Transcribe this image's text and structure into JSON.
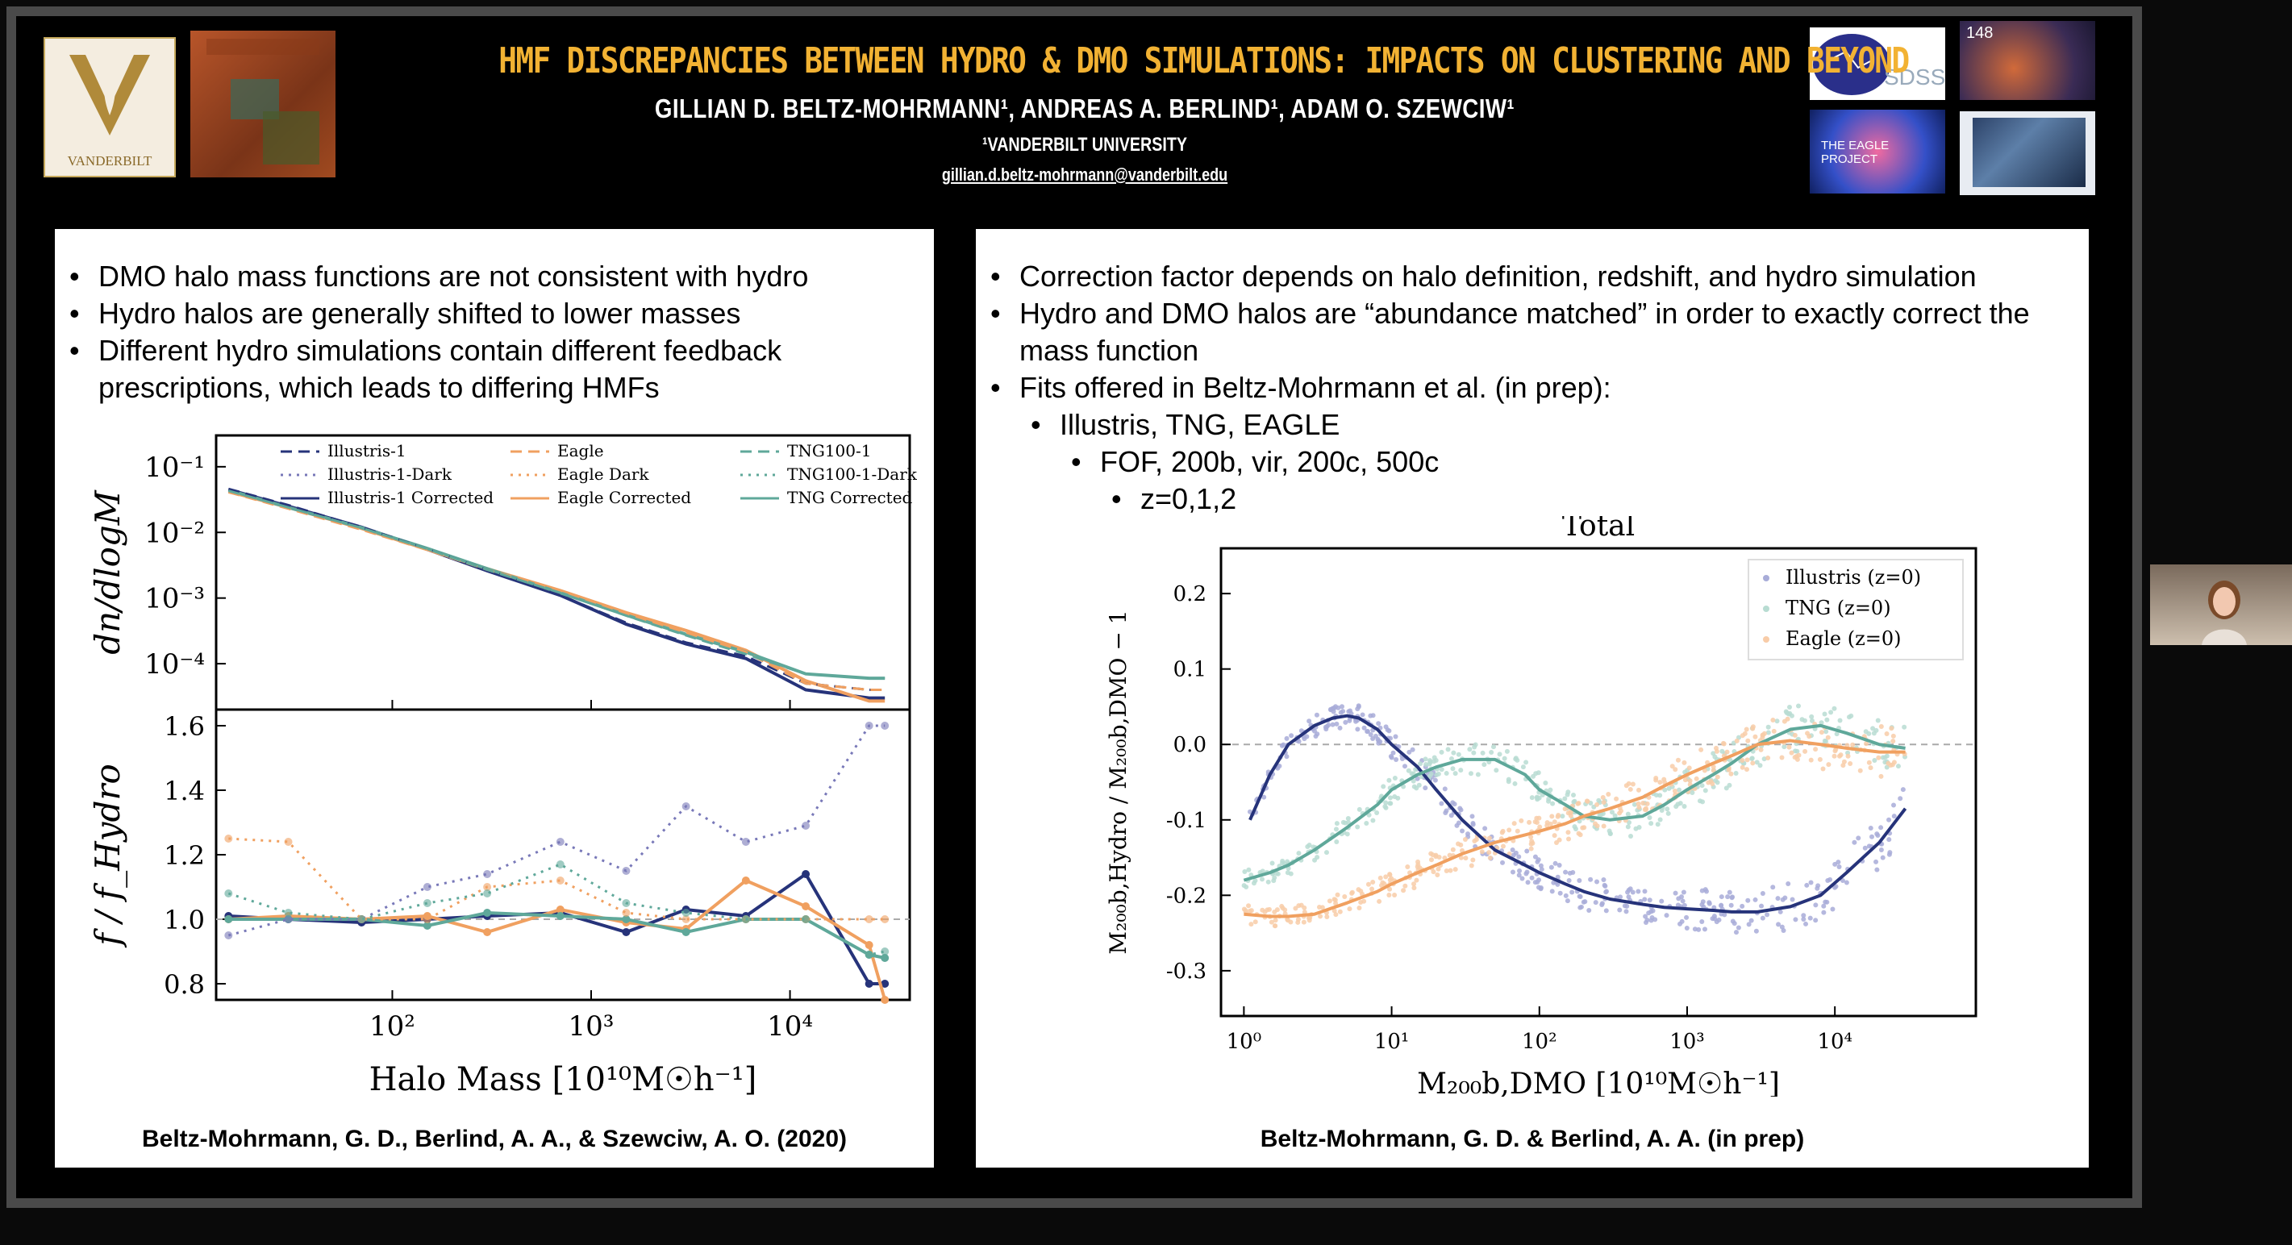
{
  "header": {
    "title": "HMF DISCREPANCIES BETWEEN HYDRO & DMO SIMULATIONS: IMPACTS ON CLUSTERING AND BEYOND",
    "authors": "GILLIAN D. BELTZ-MOHRMANN¹, ANDREAS A. BERLIND¹, ADAM O. SZEWCIW¹",
    "affiliation": "¹VANDERBILT UNIVERSITY",
    "email": "gillian.d.beltz-mohrmann@vanderbilt.edu",
    "logos": {
      "vanderbilt": "VANDERBILT",
      "sdss": "SDSS",
      "tng_number": "148",
      "eagle": "THE EAGLE PROJECT"
    }
  },
  "left_panel": {
    "bullets": [
      "DMO halo mass functions are not consistent with hydro",
      "Hydro halos are generally shifted to lower masses",
      "Different hydro simulations contain different feedback prescriptions, which leads to differing HMFs"
    ],
    "citation": "Beltz-Mohrmann, G. D., Berlind, A. A., & Szewciw, A. O. (2020)"
  },
  "right_panel": {
    "bullets": [
      {
        "text": "Correction factor depends on halo definition, redshift, and hydro simulation",
        "level": 0
      },
      {
        "text": "Hydro and DMO halos are “abundance matched” in order to exactly correct the mass function",
        "level": 0
      },
      {
        "text": "Fits offered in Beltz-Mohrmann et al. (in prep):",
        "level": 0
      },
      {
        "text": "Illustris, TNG, EAGLE",
        "level": 1
      },
      {
        "text": "FOF, 200b, vir, 200c, 500c",
        "level": 2
      },
      {
        "text": "z=0,1,2",
        "level": 3
      }
    ],
    "citation": "Beltz-Mohrmann, G. D. & Berlind, A. A. (in prep)"
  },
  "colors": {
    "title": "#f2b233",
    "illustris": "#26337a",
    "eagle": "#f0a060",
    "tng": "#5fa89a"
  },
  "chart_data": [
    {
      "type": "line",
      "title": "",
      "xlabel": "Halo Mass [10¹⁰M☉h⁻¹]",
      "ylabel": "dn/dlogM",
      "x_scale": "log",
      "y_scale": "log",
      "xlim": [
        13,
        40000
      ],
      "ylim": [
        2e-05,
        0.3
      ],
      "x_ticks": [
        {
          "v": 100,
          "label": "10²"
        },
        {
          "v": 1000,
          "label": "10³"
        },
        {
          "v": 10000,
          "label": "10⁴"
        }
      ],
      "y_ticks": [
        {
          "v": 0.1,
          "label": "10⁻¹"
        },
        {
          "v": 0.01,
          "label": "10⁻²"
        },
        {
          "v": 0.001,
          "label": "10⁻³"
        },
        {
          "v": 0.0001,
          "label": "10⁻⁴"
        }
      ],
      "legend": [
        "Illustris-1",
        "Eagle",
        "TNG100-1",
        "Illustris-1-Dark",
        "Eagle Dark",
        "TNG100-1-Dark",
        "Illustris-1 Corrected",
        "Eagle Corrected",
        "TNG Corrected"
      ],
      "legend_position": "top",
      "x": [
        15,
        30,
        70,
        150,
        300,
        700,
        1500,
        3000,
        6000,
        12000,
        25000,
        30000
      ],
      "series": [
        {
          "name": "Illustris-1 Corrected",
          "color": "#26337a",
          "dash": "solid",
          "values": [
            0.045,
            0.025,
            0.012,
            0.0055,
            0.0026,
            0.0011,
            0.0004,
            0.0002,
            0.00012,
            4e-05,
            3e-05,
            3e-05
          ]
        },
        {
          "name": "Eagle Corrected",
          "color": "#f0a060",
          "dash": "solid",
          "values": [
            0.042,
            0.024,
            0.0115,
            0.0055,
            0.0028,
            0.0013,
            0.0006,
            0.00032,
            0.00016,
            5.5e-05,
            2.7e-05,
            2.7e-05
          ]
        },
        {
          "name": "TNG Corrected",
          "color": "#5fa89a",
          "dash": "solid",
          "values": [
            0.044,
            0.024,
            0.0118,
            0.0057,
            0.0028,
            0.0012,
            0.00055,
            0.00028,
            0.00015,
            7e-05,
            6e-05,
            6e-05
          ]
        },
        {
          "name": "Illustris-1",
          "color": "#26337a",
          "dash": "dashed",
          "values": [
            0.046,
            0.026,
            0.012,
            0.0056,
            0.0027,
            0.0011,
            0.00042,
            0.00021,
            0.00013,
            5e-05,
            4e-05,
            4e-05
          ]
        },
        {
          "name": "Eagle",
          "color": "#f0a060",
          "dash": "dashed",
          "values": [
            0.041,
            0.023,
            0.011,
            0.0054,
            0.0027,
            0.0013,
            0.00058,
            0.0003,
            0.00015,
            5e-05,
            4e-05,
            4e-05
          ]
        },
        {
          "name": "TNG100-1",
          "color": "#5fa89a",
          "dash": "dashed",
          "values": [
            0.043,
            0.024,
            0.0117,
            0.0056,
            0.0027,
            0.0012,
            0.00054,
            0.00027,
            0.00014,
            7e-05,
            6e-05,
            6e-05
          ]
        }
      ]
    },
    {
      "type": "line",
      "title": "",
      "xlabel": "Halo Mass [10¹⁰M☉h⁻¹]",
      "ylabel": "f / f_Hydro",
      "x_scale": "log",
      "xlim": [
        13,
        40000
      ],
      "ylim": [
        0.75,
        1.65
      ],
      "y_ticks": [
        0.8,
        1.0,
        1.2,
        1.4,
        1.6
      ],
      "x": [
        15,
        30,
        70,
        150,
        300,
        700,
        1500,
        3000,
        6000,
        12000,
        25000,
        30000
      ],
      "series": [
        {
          "name": "Illustris-1 Corrected",
          "color": "#26337a",
          "dash": "solid",
          "values": [
            1.01,
            1.0,
            0.99,
            1.0,
            1.01,
            1.02,
            0.96,
            1.03,
            1.01,
            1.14,
            0.8,
            0.8
          ]
        },
        {
          "name": "Eagle Corrected",
          "color": "#f0a060",
          "dash": "solid",
          "values": [
            1.0,
            1.01,
            1.0,
            1.01,
            0.96,
            1.03,
            0.99,
            0.97,
            1.12,
            1.04,
            0.92,
            0.75
          ]
        },
        {
          "name": "TNG Corrected",
          "color": "#5fa89a",
          "dash": "solid",
          "values": [
            1.0,
            1.0,
            1.0,
            0.98,
            1.02,
            1.01,
            1.0,
            0.96,
            1.0,
            1.0,
            0.89,
            0.88
          ]
        },
        {
          "name": "Illustris-1-Dark",
          "color": "#7878b8",
          "dash": "dotted",
          "values": [
            0.95,
            1.0,
            1.0,
            1.1,
            1.14,
            1.24,
            1.15,
            1.35,
            1.24,
            1.29,
            1.6,
            1.6
          ]
        },
        {
          "name": "Eagle Dark",
          "color": "#f0a060",
          "dash": "dotted",
          "values": [
            1.25,
            1.24,
            1.0,
            1.0,
            1.1,
            1.12,
            1.02,
            1.0,
            1.0,
            1.0,
            1.0,
            1.0
          ]
        },
        {
          "name": "TNG100-1-Dark",
          "color": "#5fa89a",
          "dash": "dotted",
          "values": [
            1.08,
            1.02,
            1.0,
            1.05,
            1.08,
            1.17,
            1.05,
            1.02,
            1.0,
            1.0,
            0.89,
            0.9
          ]
        }
      ]
    },
    {
      "type": "scatter",
      "title": "Total",
      "xlabel": "M₂₀₀b,DMO [10¹⁰M☉h⁻¹]",
      "ylabel": "M₂₀₀b,Hydro / M₂₀₀b,DMO − 1",
      "x_scale": "log",
      "xlim": [
        0.7,
        90000
      ],
      "ylim": [
        -0.36,
        0.26
      ],
      "x_ticks": [
        {
          "v": 1,
          "label": "10⁰"
        },
        {
          "v": 10,
          "label": "10¹"
        },
        {
          "v": 100,
          "label": "10²"
        },
        {
          "v": 1000,
          "label": "10³"
        },
        {
          "v": 10000,
          "label": "10⁴"
        }
      ],
      "y_ticks": [
        0.2,
        0.1,
        0.0,
        -0.1,
        -0.2,
        -0.3
      ],
      "legend": [
        "Illustris (z=0)",
        "TNG (z=0)",
        "Eagle (z=0)"
      ],
      "legend_position": "top-right",
      "series": [
        {
          "name": "Illustris (z=0)",
          "color": "#26337a",
          "point_color": "#a8acd8",
          "x": [
            1.1,
            1.5,
            2,
            3,
            4,
            5,
            6,
            8,
            10,
            15,
            20,
            30,
            50,
            80,
            100,
            150,
            200,
            300,
            500,
            700,
            1000,
            1500,
            2000,
            3000,
            5000,
            8000,
            12000,
            20000,
            30000
          ],
          "values": [
            -0.1,
            -0.04,
            0.0,
            0.025,
            0.035,
            0.038,
            0.035,
            0.02,
            0.0,
            -0.03,
            -0.06,
            -0.1,
            -0.14,
            -0.16,
            -0.17,
            -0.185,
            -0.195,
            -0.205,
            -0.212,
            -0.216,
            -0.218,
            -0.22,
            -0.222,
            -0.222,
            -0.215,
            -0.2,
            -0.17,
            -0.13,
            -0.085
          ]
        },
        {
          "name": "TNG (z=0)",
          "color": "#5fa89a",
          "point_color": "#b8dcd2",
          "x": [
            1,
            1.5,
            2,
            3,
            5,
            8,
            10,
            15,
            20,
            30,
            50,
            80,
            100,
            150,
            200,
            300,
            500,
            700,
            1000,
            1500,
            2000,
            3000,
            5000,
            8000,
            12000,
            20000,
            30000
          ],
          "values": [
            -0.18,
            -0.17,
            -0.16,
            -0.14,
            -0.11,
            -0.08,
            -0.06,
            -0.04,
            -0.03,
            -0.02,
            -0.02,
            -0.04,
            -0.06,
            -0.08,
            -0.095,
            -0.1,
            -0.095,
            -0.08,
            -0.06,
            -0.04,
            -0.025,
            0.0,
            0.02,
            0.025,
            0.015,
            0.0,
            -0.005
          ]
        },
        {
          "name": "Eagle (z=0)",
          "color": "#f0a060",
          "point_color": "#f8cca8",
          "x": [
            1,
            1.5,
            2,
            3,
            5,
            8,
            10,
            15,
            20,
            30,
            50,
            80,
            100,
            150,
            200,
            300,
            500,
            700,
            1000,
            1500,
            2000,
            3000,
            5000,
            8000,
            12000,
            20000,
            30000
          ],
          "values": [
            -0.225,
            -0.228,
            -0.228,
            -0.225,
            -0.21,
            -0.195,
            -0.185,
            -0.17,
            -0.16,
            -0.145,
            -0.13,
            -0.12,
            -0.115,
            -0.105,
            -0.095,
            -0.085,
            -0.07,
            -0.055,
            -0.04,
            -0.025,
            -0.015,
            0.0,
            0.005,
            0.0,
            -0.005,
            -0.01,
            -0.01
          ]
        }
      ]
    }
  ]
}
